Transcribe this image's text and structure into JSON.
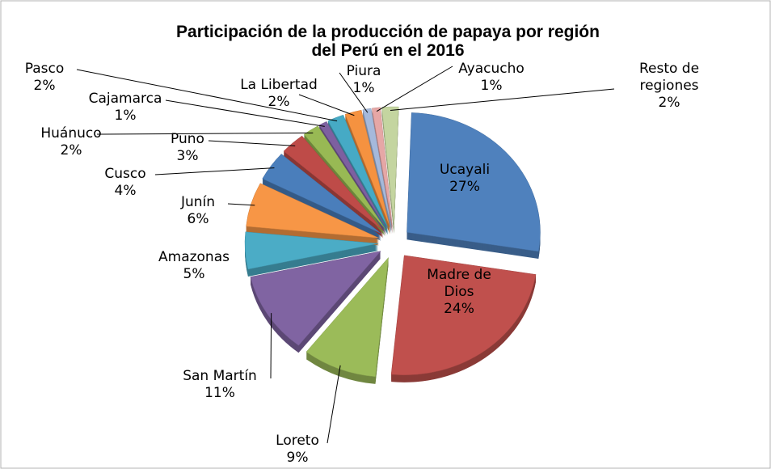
{
  "chart_data": {
    "type": "pie",
    "title": "Participación de la producción de papaya por región del Perú en el 2016",
    "categories": [
      "Ucayali",
      "Madre de Dios",
      "Loreto",
      "San Martín",
      "Amazonas",
      "Junín",
      "Cusco",
      "Puno",
      "Huánuco",
      "Cajamarca",
      "Pasco",
      "La Libertad",
      "Piura",
      "Ayacucho",
      "Resto de regiones"
    ],
    "values": [
      27,
      24,
      9,
      11,
      5,
      6,
      4,
      3,
      2,
      1,
      2,
      2,
      1,
      1,
      2
    ],
    "value_labels": [
      "27%",
      "24%",
      "9%",
      "11%",
      "5%",
      "6%",
      "4%",
      "3%",
      "2%",
      "1%",
      "2%",
      "2%",
      "1%",
      "1%",
      "2%"
    ],
    "colors": [
      "#4f81bd",
      "#c0504d",
      "#9bbb59",
      "#8064a2",
      "#4bacc6",
      "#f79646",
      "#4a7ebb",
      "#be4b48",
      "#98b954",
      "#7d60a0",
      "#46aac5",
      "#f59240",
      "#a5b9db",
      "#e6a7a6",
      "#c4d5a0"
    ]
  }
}
